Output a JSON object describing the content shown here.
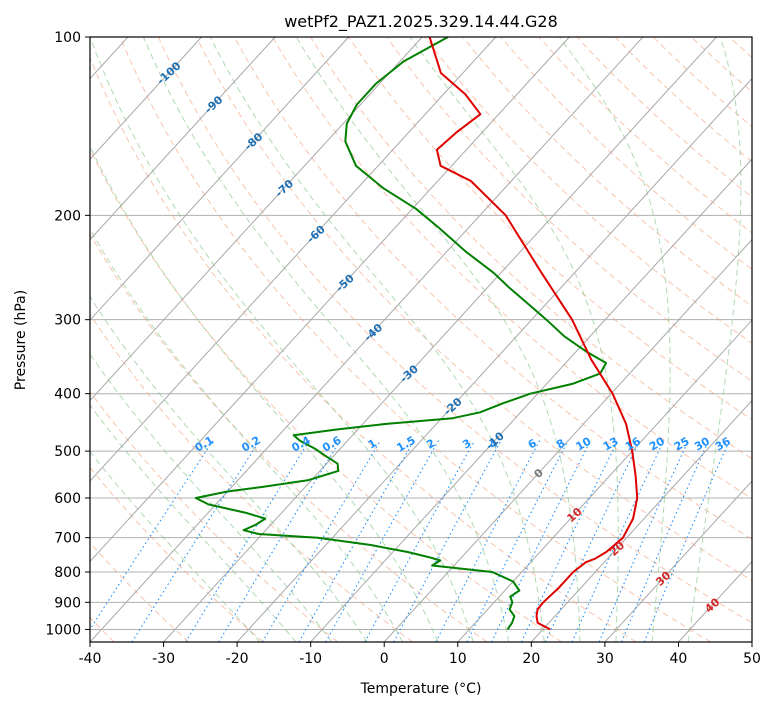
{
  "chart_data": {
    "type": "skew-t",
    "title": "wetPf2_PAZ1.2025.329.14.44.G28",
    "xlabel": "Temperature (°C)",
    "ylabel": "Pressure (hPa)",
    "xlim": [
      -40,
      50
    ],
    "ylim": [
      1050,
      100
    ],
    "x_ticks": [
      -40,
      -30,
      -20,
      -10,
      0,
      10,
      20,
      30,
      40,
      50
    ],
    "y_ticks": [
      1000,
      900,
      800,
      700,
      600,
      500,
      400,
      300,
      200,
      100
    ],
    "grid": true,
    "colors": {
      "temperature": "#e00000",
      "dewpoint": "#008000",
      "isotherm": "#a8a8a8",
      "dry_adiabat": "#f4a582",
      "moist_adiabat": "#8fc98f",
      "mixing_ratio": "#1e90ff",
      "isotherm_label_cold": "#1f6fb5",
      "isotherm_label_warm": "#d62728",
      "isotherm_label_zero": "#777777"
    },
    "temperature_profile": {
      "name": "Temperature",
      "points": [
        {
          "p": 1000,
          "t": 21.0
        },
        {
          "p": 975,
          "t": 18.5
        },
        {
          "p": 950,
          "t": 17.5
        },
        {
          "p": 925,
          "t": 16.8
        },
        {
          "p": 900,
          "t": 16.7
        },
        {
          "p": 850,
          "t": 17.0
        },
        {
          "p": 800,
          "t": 17.0
        },
        {
          "p": 770,
          "t": 17.5
        },
        {
          "p": 760,
          "t": 18.3
        },
        {
          "p": 740,
          "t": 19.0
        },
        {
          "p": 700,
          "t": 19.5
        },
        {
          "p": 650,
          "t": 18.5
        },
        {
          "p": 600,
          "t": 16.5
        },
        {
          "p": 550,
          "t": 13.5
        },
        {
          "p": 500,
          "t": 10.0
        },
        {
          "p": 450,
          "t": 5.8
        },
        {
          "p": 400,
          "t": 0.2
        },
        {
          "p": 350,
          "t": -7.0
        },
        {
          "p": 300,
          "t": -14.5
        },
        {
          "p": 250,
          "t": -24.5
        },
        {
          "p": 200,
          "t": -36.5
        },
        {
          "p": 175,
          "t": -45.5
        },
        {
          "p": 165,
          "t": -51.5
        },
        {
          "p": 155,
          "t": -54.0
        },
        {
          "p": 145,
          "t": -53.5
        },
        {
          "p": 135,
          "t": -52.5
        },
        {
          "p": 125,
          "t": -57.0
        },
        {
          "p": 115,
          "t": -63.0
        },
        {
          "p": 100,
          "t": -69.0
        }
      ]
    },
    "dewpoint_profile": {
      "name": "Dewpoint",
      "points": [
        {
          "p": 1000,
          "t": 15.2
        },
        {
          "p": 975,
          "t": 15.0
        },
        {
          "p": 950,
          "t": 14.5
        },
        {
          "p": 925,
          "t": 13.0
        },
        {
          "p": 900,
          "t": 12.5
        },
        {
          "p": 880,
          "t": 11.5
        },
        {
          "p": 860,
          "t": 12.0
        },
        {
          "p": 830,
          "t": 10.0
        },
        {
          "p": 800,
          "t": 6.0
        },
        {
          "p": 780,
          "t": -3.0
        },
        {
          "p": 765,
          "t": -2.5
        },
        {
          "p": 755,
          "t": -4.5
        },
        {
          "p": 740,
          "t": -8.0
        },
        {
          "p": 720,
          "t": -14.0
        },
        {
          "p": 700,
          "t": -22.0
        },
        {
          "p": 690,
          "t": -30.5
        },
        {
          "p": 680,
          "t": -33.0
        },
        {
          "p": 665,
          "t": -32.0
        },
        {
          "p": 650,
          "t": -31.5
        },
        {
          "p": 635,
          "t": -35.0
        },
        {
          "p": 615,
          "t": -41.0
        },
        {
          "p": 600,
          "t": -43.5
        },
        {
          "p": 585,
          "t": -40.0
        },
        {
          "p": 575,
          "t": -36.0
        },
        {
          "p": 560,
          "t": -30.5
        },
        {
          "p": 540,
          "t": -27.5
        },
        {
          "p": 525,
          "t": -28.5
        },
        {
          "p": 510,
          "t": -31.0
        },
        {
          "p": 495,
          "t": -33.5
        },
        {
          "p": 480,
          "t": -36.5
        },
        {
          "p": 470,
          "t": -38.0
        },
        {
          "p": 460,
          "t": -33.0
        },
        {
          "p": 450,
          "t": -27.0
        },
        {
          "p": 440,
          "t": -18.5
        },
        {
          "p": 430,
          "t": -15.5
        },
        {
          "p": 415,
          "t": -13.5
        },
        {
          "p": 400,
          "t": -11.0
        },
        {
          "p": 385,
          "t": -6.5
        },
        {
          "p": 370,
          "t": -4.0
        },
        {
          "p": 355,
          "t": -4.5
        },
        {
          "p": 340,
          "t": -8.5
        },
        {
          "p": 320,
          "t": -13.5
        },
        {
          "p": 300,
          "t": -18.0
        },
        {
          "p": 280,
          "t": -23.0
        },
        {
          "p": 265,
          "t": -27.0
        },
        {
          "p": 250,
          "t": -31.0
        },
        {
          "p": 230,
          "t": -37.5
        },
        {
          "p": 210,
          "t": -44.0
        },
        {
          "p": 195,
          "t": -49.5
        },
        {
          "p": 180,
          "t": -56.5
        },
        {
          "p": 165,
          "t": -63.0
        },
        {
          "p": 150,
          "t": -67.5
        },
        {
          "p": 140,
          "t": -69.5
        },
        {
          "p": 130,
          "t": -70.5
        },
        {
          "p": 120,
          "t": -70.5
        },
        {
          "p": 110,
          "t": -69.5
        },
        {
          "p": 100,
          "t": -66.5
        }
      ]
    },
    "isotherm_labels": [
      {
        "text": "-100",
        "t": -100,
        "p": 115
      },
      {
        "text": "-90",
        "t": -90,
        "p": 130
      },
      {
        "text": "-80",
        "t": -80,
        "p": 150
      },
      {
        "text": "-70",
        "t": -70,
        "p": 180
      },
      {
        "text": "-60",
        "t": -60,
        "p": 215
      },
      {
        "text": "-50",
        "t": -50,
        "p": 260
      },
      {
        "text": "-40",
        "t": -40,
        "p": 315
      },
      {
        "text": "-30",
        "t": -30,
        "p": 370
      },
      {
        "text": "-20",
        "t": -20,
        "p": 420
      },
      {
        "text": "-10",
        "t": -10,
        "p": 480
      },
      {
        "text": "0",
        "t": 0,
        "p": 545
      },
      {
        "text": "10",
        "t": 10,
        "p": 640
      },
      {
        "text": "20",
        "t": 20,
        "p": 730
      },
      {
        "text": "30",
        "t": 30,
        "p": 820
      },
      {
        "text": "40",
        "t": 40,
        "p": 910
      }
    ],
    "mixing_ratio_lines": [
      "0.1",
      "0.2",
      "0.4",
      "0.6",
      "1",
      "1.5",
      "2",
      "3",
      "4",
      "6",
      "8",
      "10",
      "13",
      "16",
      "20",
      "25",
      "30",
      "36"
    ],
    "mixing_ratio_label_pressure": 500
  }
}
